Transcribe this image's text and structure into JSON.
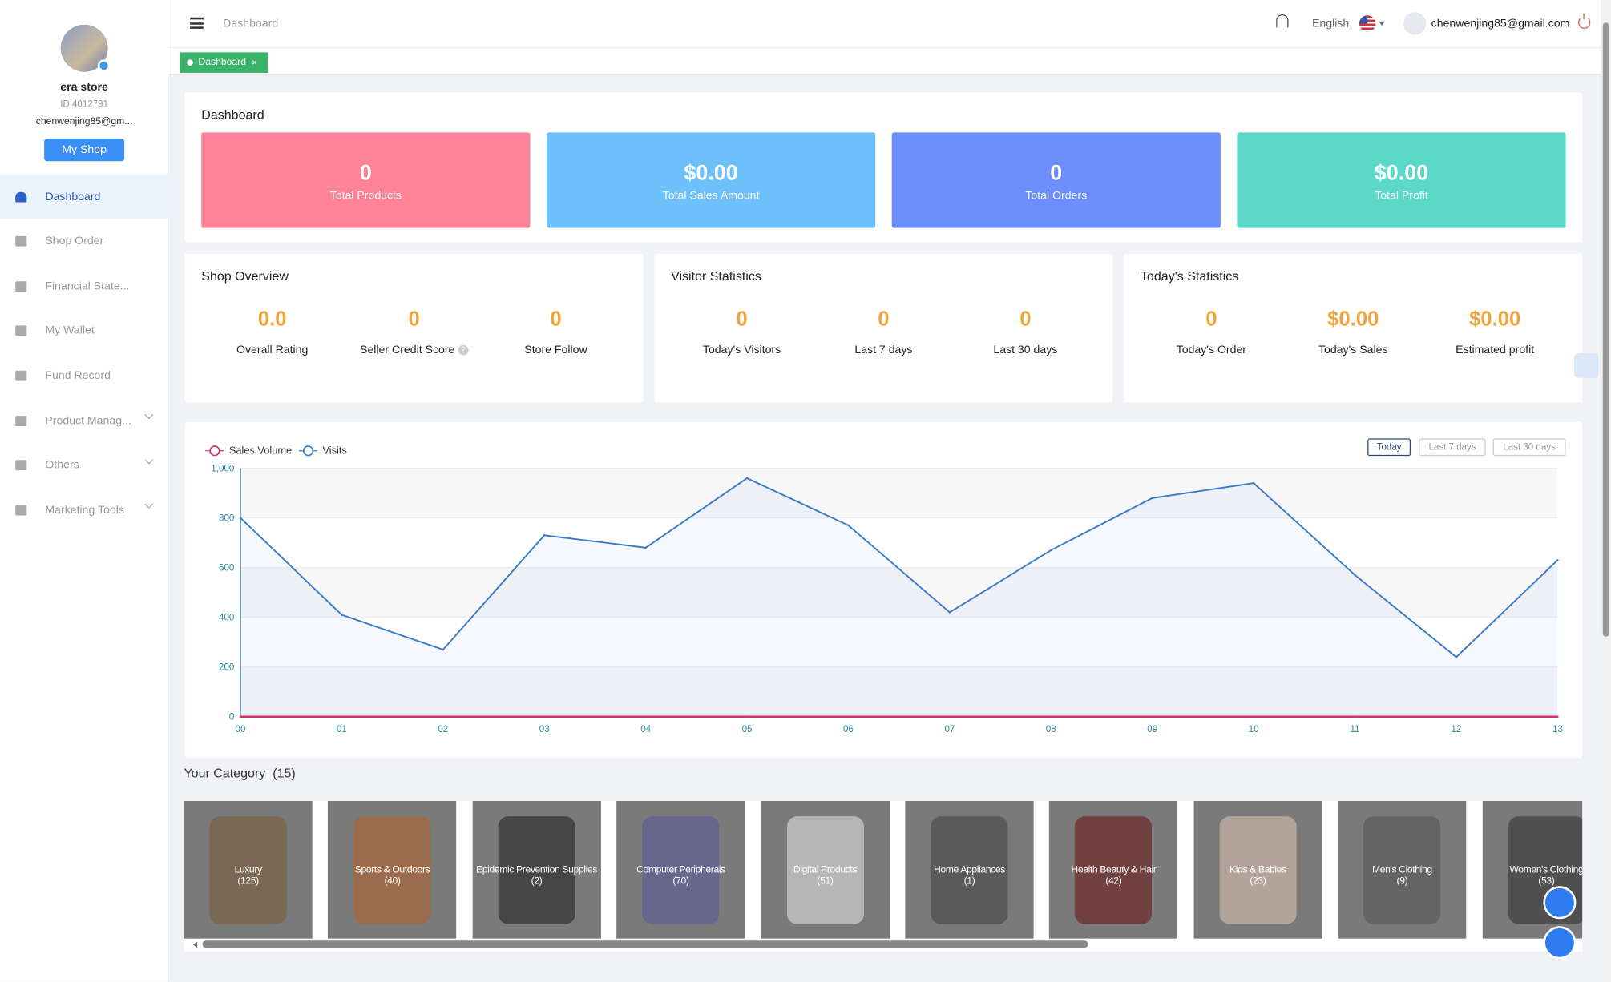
{
  "sidebar": {
    "store_name": "era store",
    "store_id": "ID 4012791",
    "email": "chenwenjing85@gm...",
    "my_shop": "My Shop",
    "items": [
      {
        "label": "Dashboard",
        "icon": "dashboard-icon"
      },
      {
        "label": "Shop Order",
        "icon": "clipboard-icon"
      },
      {
        "label": "Financial State...",
        "icon": "chart-icon"
      },
      {
        "label": "My Wallet",
        "icon": "wallet-icon"
      },
      {
        "label": "Fund Record",
        "icon": "document-icon"
      },
      {
        "label": "Product Manag...",
        "icon": "briefcase-icon"
      },
      {
        "label": "Others",
        "icon": "grid-icon"
      },
      {
        "label": "Marketing Tools",
        "icon": "bar-chart-icon"
      }
    ]
  },
  "header": {
    "breadcrumb": "Dashboard",
    "language": "English",
    "user_email": "chenwenjing85@gmail.com"
  },
  "tabs": [
    {
      "label": "Dashboard",
      "close": "×"
    }
  ],
  "dashboard": {
    "title": "Dashboard",
    "stats": [
      {
        "value": "0",
        "label": "Total Products",
        "color": "#fd8396"
      },
      {
        "value": "$0.00",
        "label": "Total Sales Amount",
        "color": "#6ec0fb"
      },
      {
        "value": "0",
        "label": "Total Orders",
        "color": "#6c8efa"
      },
      {
        "value": "$0.00",
        "label": "Total Profit",
        "color": "#5bd8c7"
      }
    ]
  },
  "shop_overview": {
    "title": "Shop Overview",
    "metrics": [
      {
        "value": "0.0",
        "label": "Overall Rating"
      },
      {
        "value": "0",
        "label": "Seller Credit Score"
      },
      {
        "value": "0",
        "label": "Store Follow"
      }
    ],
    "help": "?"
  },
  "visitor_statistics": {
    "title": "Visitor Statistics",
    "metrics": [
      {
        "value": "0",
        "label": "Today's Visitors"
      },
      {
        "value": "0",
        "label": "Last 7 days"
      },
      {
        "value": "0",
        "label": "Last 30 days"
      }
    ]
  },
  "todays_statistics": {
    "title": "Today's Statistics",
    "metrics": [
      {
        "value": "0",
        "label": "Today's Order"
      },
      {
        "value": "$0.00",
        "label": "Today's Sales"
      },
      {
        "value": "$0.00",
        "label": "Estimated profit"
      }
    ]
  },
  "range_buttons": [
    "Today",
    "Last 7 days",
    "Last 30 days"
  ],
  "chart_data": {
    "type": "line",
    "x": [
      "00",
      "01",
      "02",
      "03",
      "04",
      "05",
      "06",
      "07",
      "08",
      "09",
      "10",
      "11",
      "12",
      "13"
    ],
    "ylim": [
      0,
      1000
    ],
    "yticks": [
      "0",
      "200",
      "400",
      "600",
      "800",
      "1,000"
    ],
    "legend_position": "top-left",
    "grid": true,
    "series": [
      {
        "name": "Sales Volume",
        "color": "#d6336c",
        "values": [
          0,
          0,
          0,
          0,
          0,
          0,
          0,
          0,
          0,
          0,
          0,
          0,
          0,
          0
        ]
      },
      {
        "name": "Visits",
        "color": "#3a7bc8",
        "values": [
          800,
          410,
          270,
          730,
          680,
          960,
          770,
          420,
          670,
          880,
          940,
          570,
          240,
          630
        ]
      }
    ]
  },
  "categories": {
    "title": "Your Category",
    "count": "(15)",
    "items": [
      {
        "name": "Luxury",
        "count": "(125)"
      },
      {
        "name": "Sports & Outdoors",
        "count": "(40)"
      },
      {
        "name": "Epidemic Prevention Supplies",
        "count": "(2)"
      },
      {
        "name": "Computer Peripherals",
        "count": "(70)"
      },
      {
        "name": "Digital Products",
        "count": "(51)"
      },
      {
        "name": "Home Appliances",
        "count": "(1)"
      },
      {
        "name": "Health Beauty & Hair",
        "count": "(42)"
      },
      {
        "name": "Kids & Babies",
        "count": "(23)"
      },
      {
        "name": "Men's Clothing",
        "count": "(9)"
      },
      {
        "name": "Women's Clothing",
        "count": "(53)"
      }
    ]
  }
}
